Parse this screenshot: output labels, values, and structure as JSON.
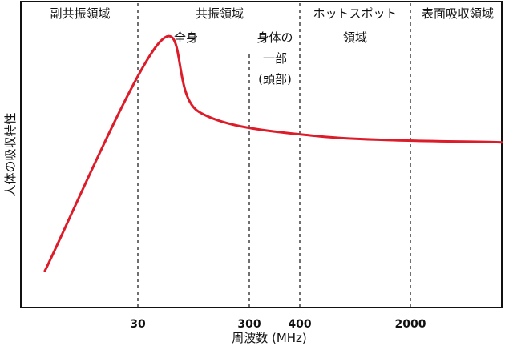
{
  "chart_data": {
    "type": "line",
    "xlabel": "周波数 (MHz)",
    "ylabel": "人体の吸収特性",
    "x_ticks": [
      "30",
      "300",
      "400",
      "2000"
    ],
    "regions": [
      {
        "name": "副共振領域"
      },
      {
        "name": "共振領域",
        "sub": [
          {
            "lines": [
              "全身"
            ]
          },
          {
            "lines": [
              "身体の",
              "一部",
              "(頭部)"
            ]
          }
        ]
      },
      {
        "name_lines": [
          "ホットスポット",
          "領域"
        ]
      },
      {
        "name": "表面吸収領域"
      }
    ],
    "series": [
      {
        "color": "#dd1c2a",
        "points": [
          [
            0.05,
            0.12
          ],
          [
            0.29,
            0.87
          ],
          [
            0.37,
            0.64
          ],
          [
            0.62,
            0.56
          ],
          [
            1.0,
            0.54
          ]
        ]
      }
    ]
  }
}
